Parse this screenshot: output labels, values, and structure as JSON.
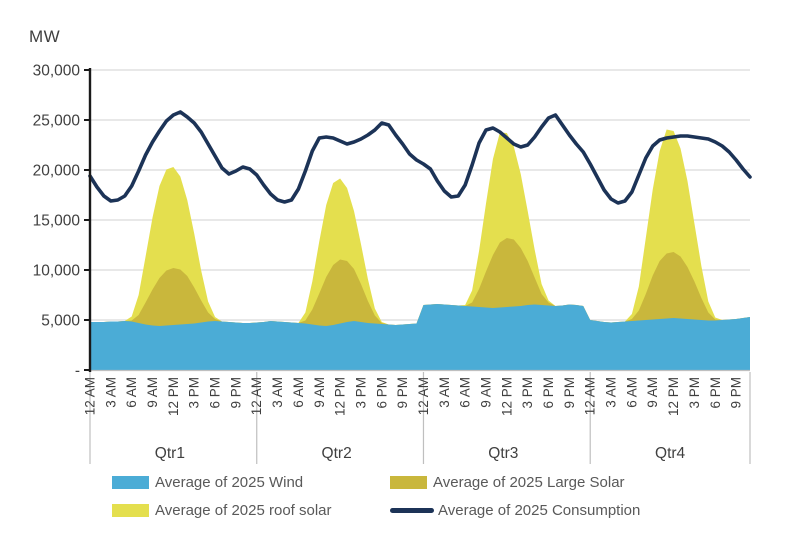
{
  "chart_data": {
    "type": "area",
    "stacked": true,
    "ylabel": "MW",
    "ylim": [
      0,
      30000
    ],
    "grid": true,
    "legend_position": "bottom",
    "y_ticks": [
      30000,
      25000,
      20000,
      15000,
      10000,
      5000,
      0
    ],
    "y_tick_labels": [
      "30,000",
      "25,000",
      "20,000",
      "15,000",
      "10,000",
      "5,000",
      "-"
    ],
    "quarters": [
      "Qtr1",
      "Qtr2",
      "Qtr3",
      "Qtr4"
    ],
    "hours_per_quarter": 24,
    "tick_every_hours": 3,
    "time_tick_labels": [
      "12 AM",
      "3 AM",
      "6 AM",
      "9 AM",
      "12 PM",
      "3 PM",
      "6 PM",
      "9 PM"
    ],
    "colors": {
      "gridline": "#d9d9d9",
      "axis": "#1a1a1a",
      "baseline": "#bfbfbf",
      "separator": "#bfbfbf",
      "tick_text": "#404040",
      "legend_text": "#595959"
    },
    "series": [
      {
        "name": "Average of 2025 Wind",
        "type": "area",
        "color": "#4bacd6",
        "values": [
          4800,
          4800,
          4800,
          4850,
          4850,
          4900,
          4850,
          4700,
          4550,
          4450,
          4400,
          4450,
          4500,
          4550,
          4600,
          4650,
          4750,
          4850,
          4900,
          4850,
          4800,
          4750,
          4700,
          4700,
          4750,
          4800,
          4900,
          4850,
          4800,
          4750,
          4700,
          4650,
          4550,
          4450,
          4400,
          4500,
          4650,
          4800,
          4900,
          4800,
          4700,
          4650,
          4600,
          4550,
          4500,
          4550,
          4600,
          4650,
          6500,
          6550,
          6600,
          6550,
          6500,
          6450,
          6400,
          6350,
          6300,
          6250,
          6200,
          6250,
          6300,
          6350,
          6400,
          6500,
          6550,
          6500,
          6450,
          6400,
          6450,
          6550,
          6500,
          6400,
          5000,
          4900,
          4800,
          4750,
          4800,
          4850,
          4900,
          4950,
          5000,
          5050,
          5100,
          5150,
          5200,
          5150,
          5100,
          5050,
          5000,
          4950,
          4950,
          5000,
          5050,
          5100,
          5200,
          5300
        ]
      },
      {
        "name": "Average of 2025 Large Solar",
        "type": "area",
        "color": "#c9b73c",
        "values": [
          0,
          0,
          0,
          0,
          0,
          0,
          100,
          800,
          2200,
          3600,
          4800,
          5500,
          5700,
          5500,
          4800,
          3600,
          2200,
          900,
          200,
          0,
          0,
          0,
          0,
          0,
          0,
          0,
          0,
          0,
          0,
          0,
          0,
          300,
          1500,
          3200,
          4900,
          6000,
          6400,
          6100,
          5200,
          3800,
          2200,
          800,
          100,
          0,
          0,
          0,
          0,
          0,
          0,
          0,
          0,
          0,
          0,
          0,
          0,
          400,
          1800,
          3600,
          5300,
          6500,
          6900,
          6700,
          5800,
          4400,
          2700,
          1100,
          300,
          0,
          0,
          0,
          0,
          0,
          0,
          0,
          0,
          0,
          0,
          0,
          200,
          1000,
          2600,
          4400,
          5800,
          6500,
          6600,
          6200,
          5200,
          3800,
          2200,
          800,
          100,
          0,
          0,
          0,
          0,
          0
        ]
      },
      {
        "name": "Average of 2025 roof solar",
        "type": "area",
        "color": "#e4df4e",
        "values": [
          0,
          0,
          0,
          0,
          0,
          0,
          400,
          2000,
          4600,
          7200,
          9200,
          10100,
          10100,
          9300,
          7600,
          5400,
          3000,
          1100,
          200,
          0,
          0,
          0,
          0,
          0,
          0,
          0,
          0,
          0,
          0,
          0,
          0,
          800,
          2800,
          5200,
          7200,
          8200,
          8100,
          7300,
          5800,
          4000,
          2200,
          700,
          100,
          0,
          0,
          0,
          0,
          0,
          0,
          0,
          0,
          0,
          0,
          0,
          100,
          1200,
          3800,
          6800,
          9600,
          11000,
          10500,
          9300,
          7400,
          5000,
          2800,
          1000,
          200,
          0,
          0,
          0,
          0,
          0,
          0,
          0,
          0,
          0,
          0,
          0,
          500,
          2400,
          5600,
          8600,
          11000,
          12400,
          12100,
          10800,
          8600,
          5800,
          3200,
          1100,
          200,
          0,
          0,
          0,
          0,
          0
        ]
      },
      {
        "name": "Average of 2025 Consumption",
        "type": "line",
        "color": "#1c3357",
        "values": [
          19400,
          18300,
          17400,
          16900,
          17000,
          17400,
          18400,
          19900,
          21500,
          22800,
          23900,
          24900,
          25500,
          25800,
          25300,
          24700,
          23800,
          22600,
          21400,
          20200,
          19600,
          19900,
          20300,
          20100,
          19500,
          18500,
          17600,
          17000,
          16800,
          17000,
          18100,
          19900,
          21900,
          23200,
          23300,
          23200,
          22900,
          22600,
          22800,
          23100,
          23500,
          24000,
          24700,
          24500,
          23500,
          22600,
          21600,
          21000,
          20600,
          20100,
          18900,
          17900,
          17300,
          17400,
          18500,
          20500,
          22700,
          24000,
          24200,
          23800,
          23200,
          22600,
          22300,
          22500,
          23300,
          24300,
          25200,
          25500,
          24500,
          23500,
          22600,
          21800,
          20600,
          19300,
          18000,
          17100,
          16700,
          16900,
          17800,
          19500,
          21200,
          22400,
          23000,
          23200,
          23300,
          23400,
          23400,
          23300,
          23200,
          23100,
          22800,
          22400,
          21800,
          21000,
          20100,
          19300
        ]
      }
    ]
  }
}
